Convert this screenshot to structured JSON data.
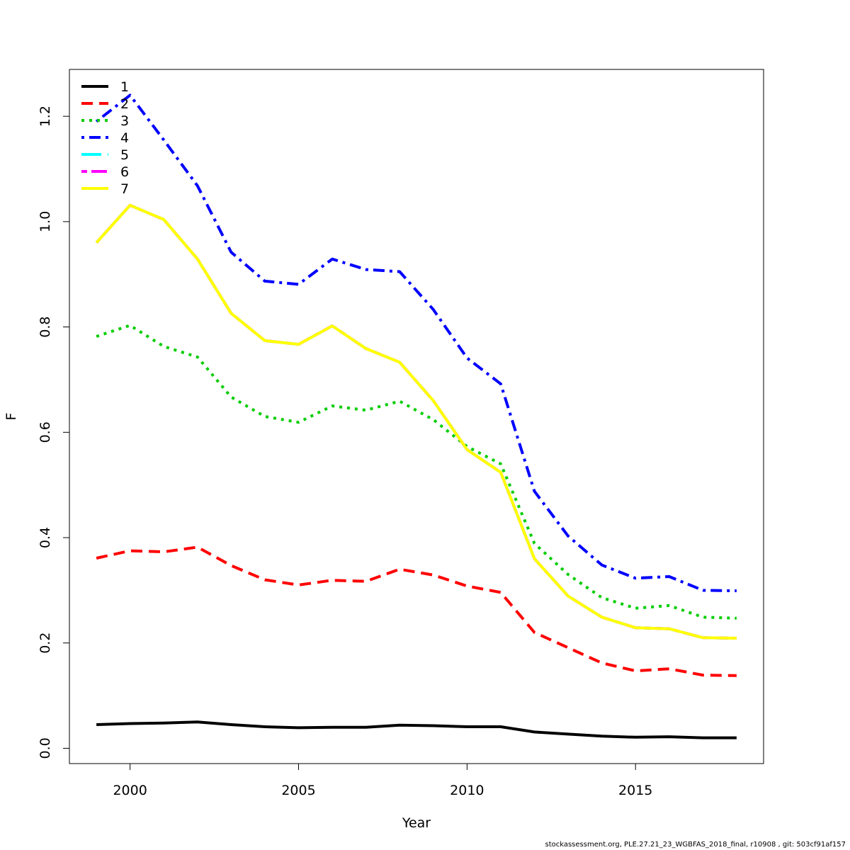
{
  "footer": "stockassessment.org, PLE.27.21_23_WGBFAS_2018_final, r10908 , git: 503cf91af157",
  "chart_data": {
    "type": "line",
    "title": "",
    "xlabel": "Year",
    "ylabel": "F",
    "xlim": [
      1998.2,
      2018.8
    ],
    "ylim": [
      -0.029,
      1.289
    ],
    "x_ticks": [
      2000,
      2005,
      2010,
      2015
    ],
    "y_ticks": [
      0.0,
      0.2,
      0.4,
      0.6,
      0.8,
      1.0,
      1.2
    ],
    "y_tick_labels": [
      "0.0",
      "0.2",
      "0.4",
      "0.6",
      "0.8",
      "1.0",
      "1.2"
    ],
    "grid": false,
    "legend_position": "top-left",
    "x": [
      1999,
      2000,
      2001,
      2002,
      2003,
      2004,
      2005,
      2006,
      2007,
      2008,
      2009,
      2010,
      2011,
      2012,
      2013,
      2014,
      2015,
      2016,
      2017,
      2018
    ],
    "series": [
      {
        "name": "1",
        "color": "#000000",
        "dash": "solid",
        "values": [
          0.045,
          0.047,
          0.048,
          0.05,
          0.045,
          0.041,
          0.039,
          0.04,
          0.04,
          0.044,
          0.043,
          0.041,
          0.041,
          0.031,
          0.027,
          0.023,
          0.021,
          0.022,
          0.02,
          0.02
        ]
      },
      {
        "name": "2",
        "color": "#ff0000",
        "dash": "dashed",
        "values": [
          0.361,
          0.375,
          0.373,
          0.382,
          0.347,
          0.32,
          0.31,
          0.319,
          0.317,
          0.34,
          0.329,
          0.308,
          0.296,
          0.22,
          0.191,
          0.162,
          0.147,
          0.151,
          0.139,
          0.138
        ]
      },
      {
        "name": "3",
        "color": "#00cd00",
        "dash": "dotted",
        "values": [
          0.782,
          0.803,
          0.763,
          0.743,
          0.667,
          0.63,
          0.619,
          0.65,
          0.642,
          0.659,
          0.624,
          0.573,
          0.54,
          0.389,
          0.33,
          0.286,
          0.266,
          0.271,
          0.249,
          0.247
        ]
      },
      {
        "name": "4",
        "color": "#0000ff",
        "dash": "dotdash",
        "values": [
          1.19,
          1.24,
          1.155,
          1.068,
          0.942,
          0.887,
          0.881,
          0.929,
          0.909,
          0.905,
          0.833,
          0.741,
          0.692,
          0.488,
          0.403,
          0.348,
          0.323,
          0.326,
          0.3,
          0.299
        ]
      },
      {
        "name": "5",
        "color": "#00ffff",
        "dash": "longdash",
        "values": [
          0.96,
          1.031,
          1.004,
          0.929,
          0.826,
          0.774,
          0.767,
          0.802,
          0.759,
          0.733,
          0.66,
          0.567,
          0.524,
          0.36,
          0.289,
          0.249,
          0.229,
          0.227,
          0.21,
          0.209
        ]
      },
      {
        "name": "6",
        "color": "#ff00ff",
        "dash": "twodash",
        "values": [
          0.96,
          1.031,
          1.004,
          0.929,
          0.826,
          0.774,
          0.767,
          0.802,
          0.759,
          0.733,
          0.66,
          0.567,
          0.524,
          0.36,
          0.289,
          0.249,
          0.229,
          0.227,
          0.21,
          0.209
        ]
      },
      {
        "name": "7",
        "color": "#ffff00",
        "dash": "solid",
        "values": [
          0.96,
          1.031,
          1.004,
          0.929,
          0.826,
          0.774,
          0.767,
          0.802,
          0.759,
          0.733,
          0.66,
          0.567,
          0.524,
          0.36,
          0.289,
          0.249,
          0.229,
          0.227,
          0.21,
          0.209
        ]
      }
    ]
  }
}
